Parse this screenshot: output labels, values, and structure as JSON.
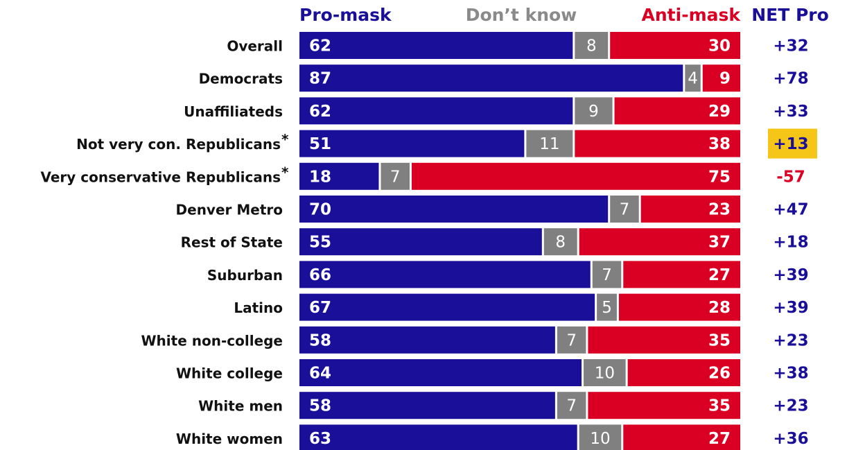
{
  "chart_data": {
    "type": "bar",
    "stacked": true,
    "orientation": "horizontal",
    "headers": {
      "pro": "Pro-mask",
      "dk": "Don’t know",
      "anti": "Anti-mask",
      "net": "NET Pro"
    },
    "colors": {
      "pro": "#1a0f99",
      "dk": "#808080",
      "anti": "#d90024",
      "highlight": "#f5c518",
      "net_positive": "#1a0f99",
      "net_negative": "#d90024"
    },
    "categories": [
      "Overall",
      "Democrats",
      "Unaffiliateds",
      "Not very con. Republicans",
      "Very conservative Republicans",
      "Denver Metro",
      "Rest of State",
      "Suburban",
      "Latino",
      "White non-college",
      "White college",
      "White men",
      "White women"
    ],
    "footnote_marks": [
      "",
      "",
      "",
      "*",
      "*",
      "",
      "",
      "",
      "",
      "",
      "",
      "",
      ""
    ],
    "series": [
      {
        "name": "Pro-mask",
        "values": [
          62,
          87,
          62,
          51,
          18,
          70,
          55,
          66,
          67,
          58,
          64,
          58,
          63
        ]
      },
      {
        "name": "Don’t know",
        "values": [
          8,
          4,
          9,
          11,
          7,
          7,
          8,
          7,
          5,
          7,
          10,
          7,
          10
        ]
      },
      {
        "name": "Anti-mask",
        "values": [
          30,
          9,
          29,
          38,
          75,
          23,
          37,
          27,
          28,
          35,
          26,
          35,
          27
        ]
      }
    ],
    "net": [
      "+32",
      "+78",
      "+33",
      "+13",
      "-57",
      "+47",
      "+18",
      "+39",
      "+39",
      "+23",
      "+38",
      "+23",
      "+36"
    ],
    "highlighted_net": "Not very con. Republicans",
    "xlim": [
      0,
      100
    ]
  }
}
